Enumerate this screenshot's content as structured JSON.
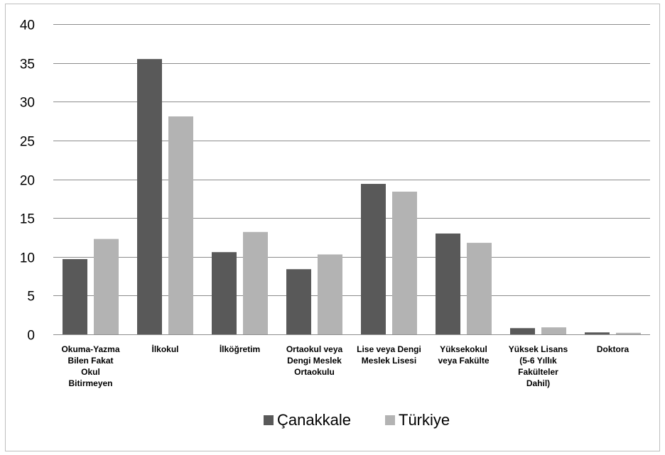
{
  "chart_data": {
    "type": "bar",
    "categories": [
      [
        "Okuma-Yazma",
        "Bilen Fakat",
        "Okul",
        "Bitirmeyen"
      ],
      [
        "İlkokul"
      ],
      [
        "İlköğretim"
      ],
      [
        "Ortaokul veya",
        "Dengi Meslek",
        "Ortaokulu"
      ],
      [
        "Lise veya Dengi",
        "Meslek Lisesi"
      ],
      [
        "Yüksekokul",
        "veya Fakülte"
      ],
      [
        "Yüksek Lisans",
        "(5-6 Yıllık",
        "Fakülteler",
        "Dahil)"
      ],
      [
        "Doktora"
      ]
    ],
    "series": [
      {
        "name": "Çanakkale",
        "color": "#595959",
        "values": [
          9.7,
          35.5,
          10.6,
          8.4,
          19.4,
          13.0,
          0.8,
          0.25
        ]
      },
      {
        "name": "Türkiye",
        "color": "#b3b3b3",
        "values": [
          12.3,
          28.1,
          13.2,
          10.3,
          18.4,
          11.8,
          0.9,
          0.2
        ]
      }
    ],
    "ylim": [
      0,
      40
    ],
    "yticks": [
      0,
      5,
      10,
      15,
      20,
      25,
      30,
      35,
      40
    ],
    "grid": true,
    "legend_position": "bottom"
  }
}
